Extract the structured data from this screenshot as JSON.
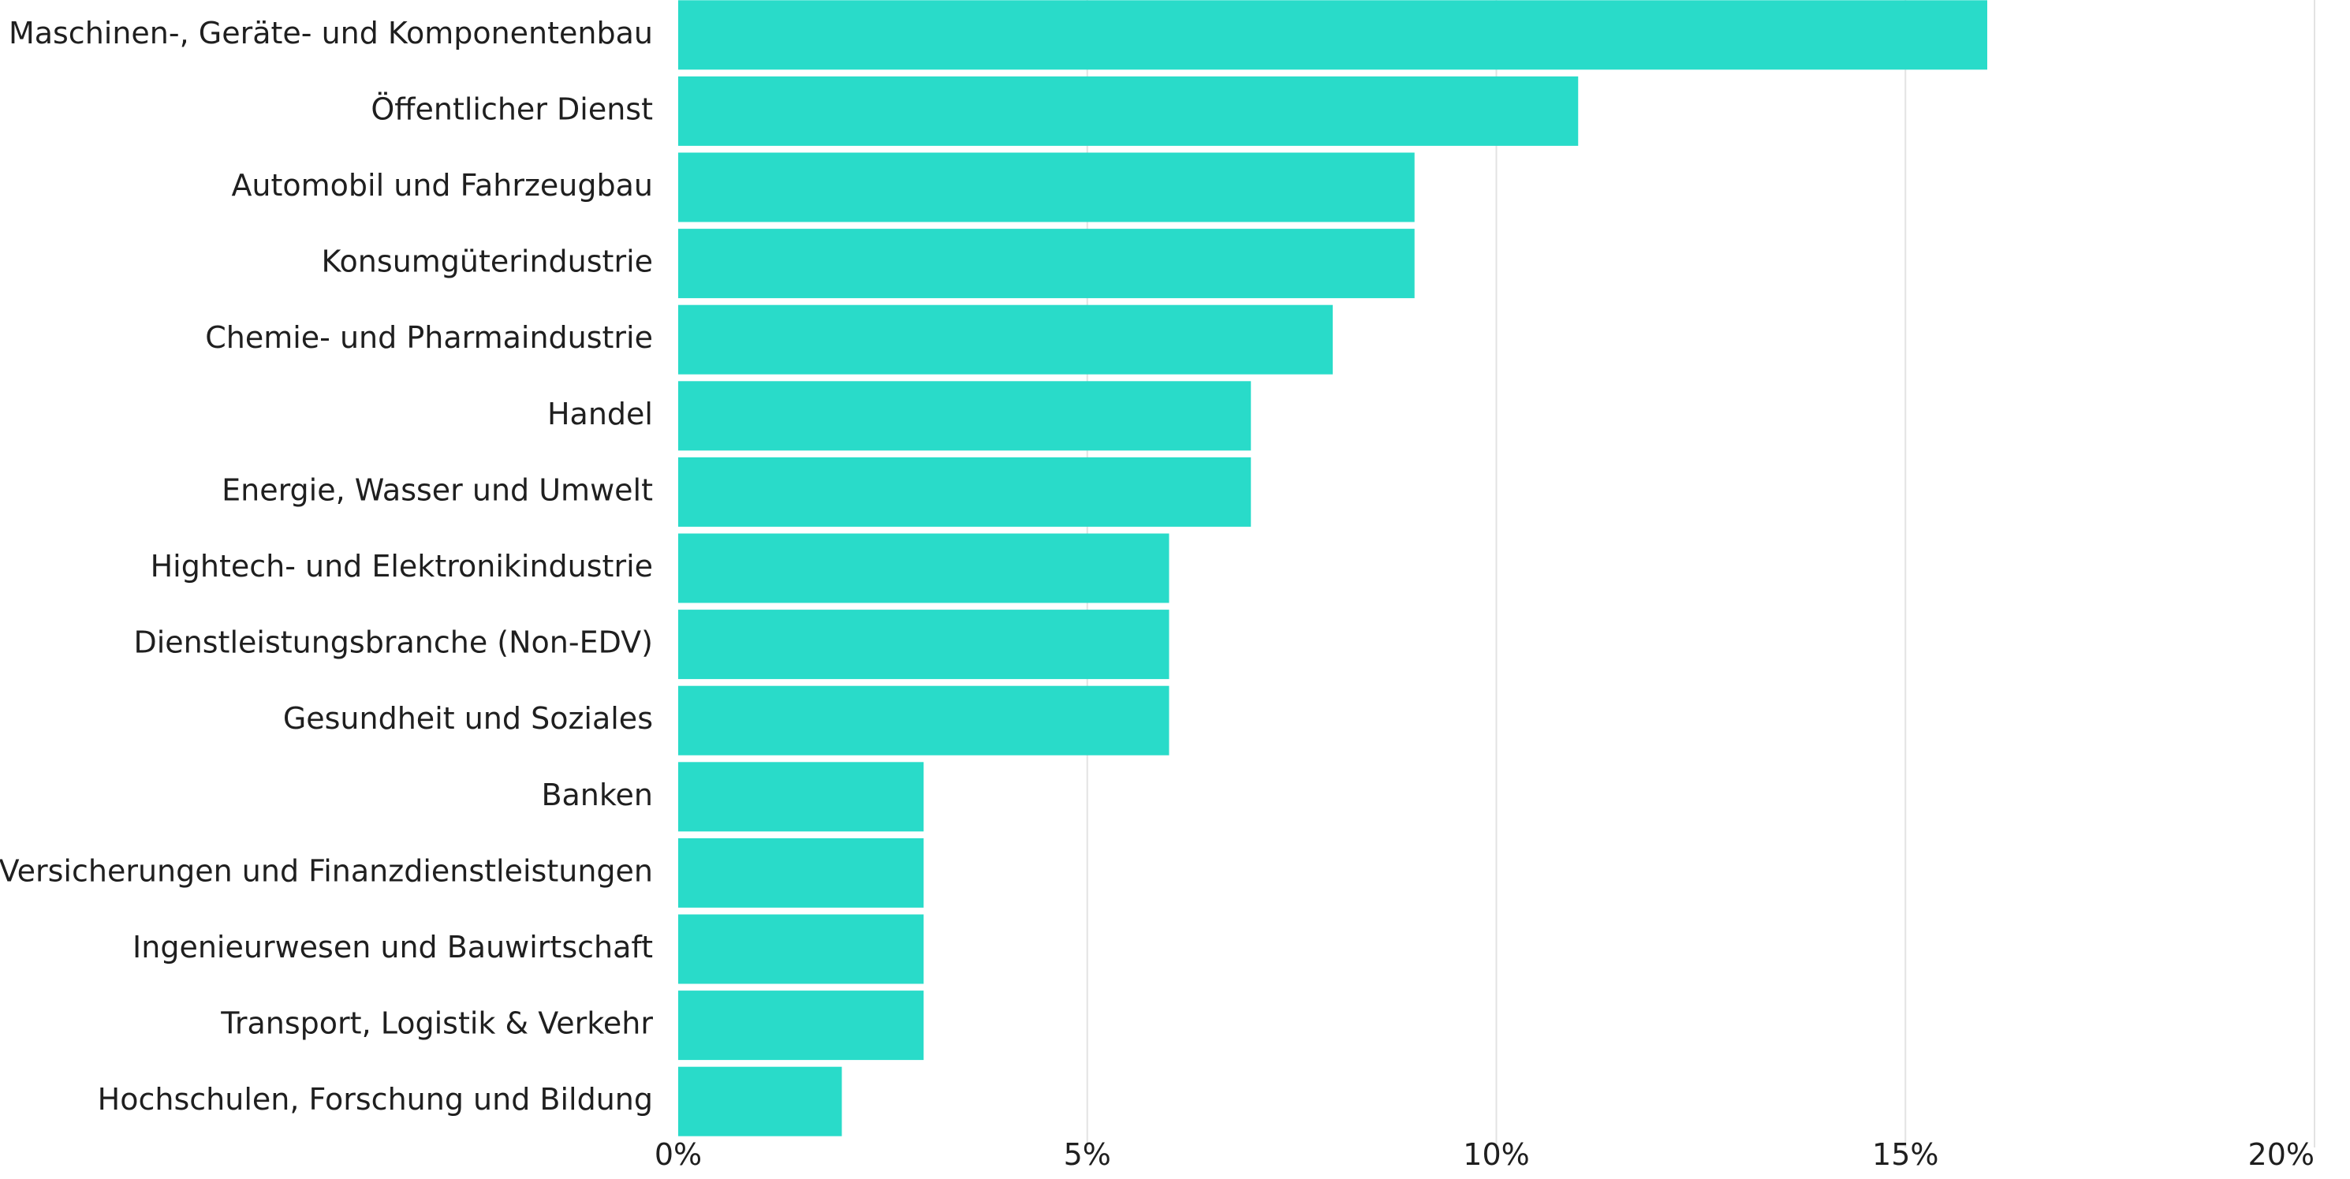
{
  "chart_data": {
    "type": "bar",
    "orientation": "horizontal",
    "categories": [
      "Maschinen-, Geräte- und Komponentenbau",
      "Öffentlicher Dienst",
      "Automobil und Fahrzeugbau",
      "Konsumgüterindustrie",
      "Chemie- und Pharmaindustrie",
      "Handel",
      "Energie, Wasser und Umwelt",
      "Hightech- und Elektronikindustrie",
      "Dienstleistungsbranche (Non-EDV)",
      "Gesundheit und Soziales",
      "Banken",
      "Versicherungen und Finanzdienstleistungen",
      "Ingenieurwesen und Bauwirtschaft",
      "Transport, Logistik & Verkehr",
      "Hochschulen, Forschung und Bildung"
    ],
    "values": [
      16,
      11,
      9,
      9,
      8,
      7,
      7,
      6,
      6,
      6,
      3,
      3,
      3,
      3,
      2
    ],
    "xlim": [
      0,
      20
    ],
    "x_ticks": [
      0,
      5,
      10,
      15,
      20
    ],
    "x_tick_labels": [
      "0%",
      "5%",
      "10%",
      "15%",
      "20%"
    ],
    "title": "",
    "xlabel": "",
    "ylabel": "",
    "grid": "vertical",
    "legend": "none",
    "bar_color": "#29dbc9",
    "grid_color": "#e3e3e3",
    "text_color": "#1f1f1f"
  }
}
